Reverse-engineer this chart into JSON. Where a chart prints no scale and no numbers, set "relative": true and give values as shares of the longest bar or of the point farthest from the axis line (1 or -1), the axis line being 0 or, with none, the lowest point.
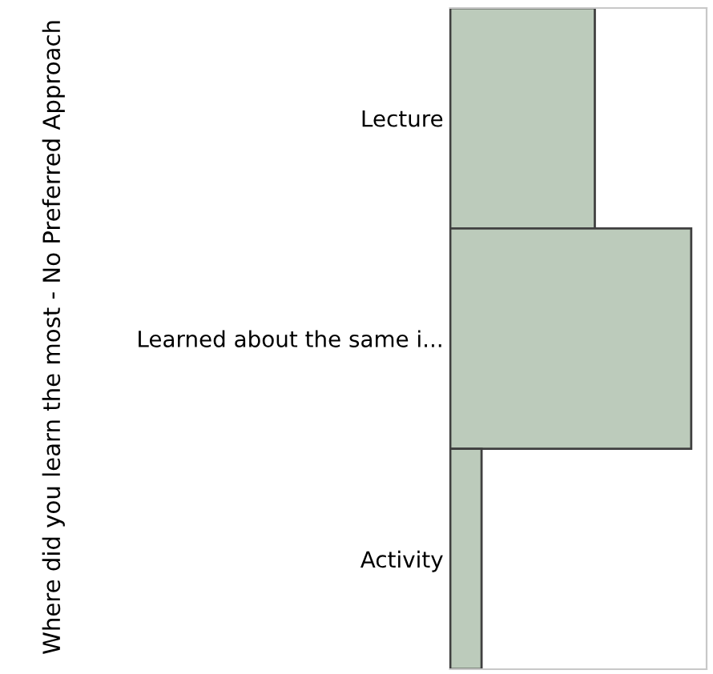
{
  "chart_data": {
    "type": "bar",
    "orientation": "horizontal",
    "relative": true,
    "ylabel": "Where did you learn the most - No Preferred Approach",
    "categories": [
      "Lecture",
      "Learned about the same i...",
      "Activity"
    ],
    "values": [
      0.6,
      1,
      0.13
    ],
    "color": "#bccbbb",
    "grid": false,
    "legend": false
  }
}
